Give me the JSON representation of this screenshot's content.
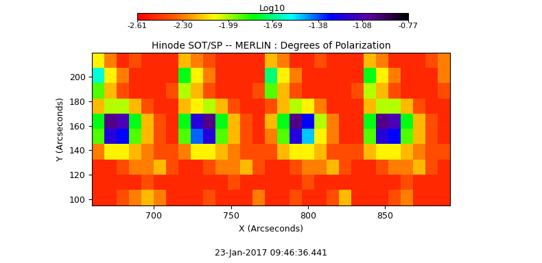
{
  "chart_data": {
    "type": "heatmap",
    "title": "Hinode SOT/SP -- MERLIN : Degrees of Polarization",
    "x_label": "X (Arcseconds)",
    "y_label": "Y (Arcseconds)",
    "annotation": "23-Jan-2017 09:46:36.441",
    "xlim": [
      660,
      892
    ],
    "ylim": [
      95,
      220
    ],
    "xticks": [
      700,
      750,
      800,
      850
    ],
    "yticks": [
      100,
      120,
      140,
      160,
      180,
      200
    ],
    "x_edges": [
      660,
      668,
      676,
      684,
      692,
      700,
      708,
      716,
      724,
      732,
      740,
      748,
      756,
      764,
      772,
      780,
      788,
      796,
      804,
      812,
      820,
      828,
      836,
      844,
      852,
      860,
      868,
      876,
      884,
      892
    ],
    "y_edges": [
      95,
      107.5,
      120,
      132.5,
      145,
      157.5,
      170,
      182.5,
      195,
      207.5,
      220
    ],
    "cells": [
      [
        -2.5,
        -2.5,
        -2.4,
        -2.3,
        -2.2,
        -2.3,
        -2.5,
        -2.5,
        -2.5,
        -2.4,
        -2.5,
        -2.5,
        -2.5,
        -2.3,
        -2.5,
        -2.5,
        -2.4,
        -2.5,
        -2.5,
        -2.4,
        -2.2,
        -2.5,
        -2.5,
        -2.5,
        -2.4,
        -2.3,
        -2.5,
        -2.5,
        -2.5
      ],
      [
        -2.5,
        -2.5,
        -2.5,
        -2.5,
        -2.4,
        -2.5,
        -2.5,
        -2.5,
        -2.5,
        -2.5,
        -2.5,
        -2.4,
        -2.5,
        -2.5,
        -2.5,
        -2.5,
        -2.5,
        -2.4,
        -2.5,
        -2.5,
        -2.5,
        -2.5,
        -2.5,
        -2.5,
        -2.5,
        -2.4,
        -2.5,
        -2.5,
        -2.5
      ],
      [
        -2.5,
        -2.5,
        -2.4,
        -2.3,
        -2.3,
        -2.2,
        -2.4,
        -2.5,
        -2.5,
        -2.4,
        -2.3,
        -2.3,
        -2.2,
        -2.4,
        -2.5,
        -2.5,
        -2.4,
        -2.3,
        -2.3,
        -2.2,
        -2.4,
        -2.5,
        -2.5,
        -2.4,
        -2.3,
        -2.3,
        -2.2,
        -2.4,
        -2.5
      ],
      [
        -2.3,
        -2.1,
        -2.1,
        -2.2,
        -2.3,
        -2.4,
        -2.4,
        -2.3,
        -2.1,
        -2.1,
        -2.2,
        -2.3,
        -2.4,
        -2.4,
        -2.4,
        -2.2,
        -2.1,
        -2.1,
        -2.2,
        -2.4,
        -2.4,
        -2.4,
        -2.2,
        -2.1,
        -2.1,
        -2.2,
        -2.3,
        -2.4,
        -2.4
      ],
      [
        -1.9,
        -1.2,
        -1.3,
        -1.9,
        -2.2,
        -2.4,
        -2.5,
        -1.9,
        -1.4,
        -1.2,
        -1.9,
        -2.2,
        -2.4,
        -2.5,
        -2.3,
        -1.9,
        -1.2,
        -1.5,
        -2.1,
        -2.3,
        -2.5,
        -2.5,
        -1.9,
        -1.2,
        -1.3,
        -1.9,
        -2.2,
        -2.4,
        -2.5
      ],
      [
        -1.8,
        -1.0,
        -1.1,
        -1.8,
        -2.2,
        -2.4,
        -2.5,
        -1.8,
        -1.2,
        -1.0,
        -1.8,
        -2.2,
        -2.4,
        -2.5,
        -2.2,
        -1.8,
        -1.0,
        -1.3,
        -2.0,
        -2.3,
        -2.5,
        -2.5,
        -1.8,
        -1.0,
        -1.1,
        -1.8,
        -2.2,
        -2.4,
        -2.5
      ],
      [
        -2.2,
        -2.0,
        -2.0,
        -2.2,
        -2.4,
        -2.5,
        -2.5,
        -2.2,
        -2.1,
        -2.0,
        -2.2,
        -2.4,
        -2.5,
        -2.5,
        -2.4,
        -2.2,
        -2.0,
        -2.1,
        -2.3,
        -2.5,
        -2.5,
        -2.5,
        -2.2,
        -2.0,
        -2.0,
        -2.2,
        -2.4,
        -2.5,
        -2.5
      ],
      [
        -1.9,
        -2.2,
        -2.4,
        -2.5,
        -2.5,
        -2.5,
        -2.4,
        -2.0,
        -2.2,
        -2.4,
        -2.5,
        -2.5,
        -2.5,
        -2.4,
        -1.9,
        -2.2,
        -2.4,
        -2.5,
        -2.5,
        -2.5,
        -2.5,
        -2.4,
        -2.0,
        -2.2,
        -2.4,
        -2.5,
        -2.5,
        -2.5,
        -2.4
      ],
      [
        -1.6,
        -2.1,
        -2.3,
        -2.5,
        -2.5,
        -2.5,
        -2.5,
        -1.8,
        -2.1,
        -2.3,
        -2.5,
        -2.5,
        -2.5,
        -2.5,
        -1.7,
        -2.1,
        -2.3,
        -2.5,
        -2.5,
        -2.5,
        -2.5,
        -2.5,
        -1.8,
        -2.1,
        -2.3,
        -2.5,
        -2.5,
        -2.5,
        -2.3
      ],
      [
        -2.1,
        -2.3,
        -2.5,
        -2.4,
        -2.5,
        -2.5,
        -2.5,
        -2.2,
        -2.3,
        -2.4,
        -2.5,
        -2.5,
        -2.5,
        -2.5,
        -2.2,
        -2.3,
        -2.5,
        -2.5,
        -2.4,
        -2.5,
        -2.5,
        -2.5,
        -2.2,
        -2.3,
        -2.5,
        -2.5,
        -2.5,
        -2.4,
        -2.3
      ]
    ],
    "colorbar": {
      "label": "Log10",
      "range": [
        -2.61,
        -0.77
      ],
      "ticks": [
        -2.61,
        {
          "value": -2.3,
          "label": "-2.30"
        },
        -1.99,
        -1.69,
        -1.38,
        -1.08,
        -0.77
      ]
    }
  }
}
